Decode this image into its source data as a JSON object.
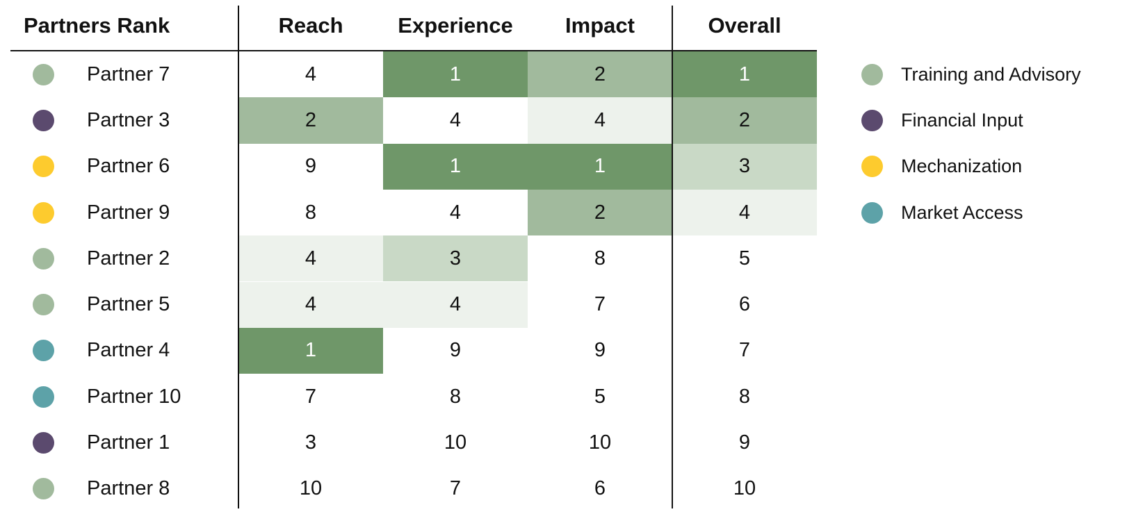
{
  "table": {
    "columns": [
      "Partners Rank",
      "Reach",
      "Experience",
      "Impact",
      "Overall"
    ],
    "rows": [
      {
        "name": "Partner 7",
        "color": "#a1ba9d",
        "values": [
          4,
          1,
          2,
          1
        ],
        "fills": [
          "#ffffff",
          "#6f9769",
          "#a1ba9d",
          "#6f9769"
        ]
      },
      {
        "name": "Partner 3",
        "color": "#5b4a6e",
        "values": [
          2,
          4,
          4,
          2
        ],
        "fills": [
          "#a1ba9d",
          "#ffffff",
          "#edf2ec",
          "#a1ba9d"
        ]
      },
      {
        "name": "Partner 6",
        "color": "#fdcb2e",
        "values": [
          9,
          1,
          1,
          3
        ],
        "fills": [
          "#ffffff",
          "#6f9769",
          "#6f9769",
          "#c9d9c6"
        ]
      },
      {
        "name": "Partner 9",
        "color": "#fdcb2e",
        "values": [
          8,
          4,
          2,
          4
        ],
        "fills": [
          "#ffffff",
          "#ffffff",
          "#a1ba9d",
          "#edf2ec"
        ]
      },
      {
        "name": "Partner 2",
        "color": "#a1ba9d",
        "values": [
          4,
          3,
          8,
          5
        ],
        "fills": [
          "#edf2ec",
          "#c9d9c6",
          "#ffffff",
          "#ffffff"
        ]
      },
      {
        "name": "Partner 5",
        "color": "#a1ba9d",
        "values": [
          4,
          4,
          7,
          6
        ],
        "fills": [
          "#edf2ec",
          "#edf2ec",
          "#ffffff",
          "#ffffff"
        ]
      },
      {
        "name": "Partner 4",
        "color": "#5da2a8",
        "values": [
          1,
          9,
          9,
          7
        ],
        "fills": [
          "#6f9769",
          "#ffffff",
          "#ffffff",
          "#ffffff"
        ]
      },
      {
        "name": "Partner 10",
        "color": "#5da2a8",
        "values": [
          7,
          8,
          5,
          8
        ],
        "fills": [
          "#ffffff",
          "#ffffff",
          "#ffffff",
          "#ffffff"
        ]
      },
      {
        "name": "Partner 1",
        "color": "#5b4a6e",
        "values": [
          3,
          10,
          10,
          9
        ],
        "fills": [
          "#ffffff",
          "#ffffff",
          "#ffffff",
          "#ffffff"
        ]
      },
      {
        "name": "Partner 8",
        "color": "#a1ba9d",
        "values": [
          10,
          7,
          6,
          10
        ],
        "fills": [
          "#ffffff",
          "#ffffff",
          "#ffffff",
          "#ffffff"
        ]
      }
    ]
  },
  "legend": [
    {
      "name": "Training and Advisory",
      "color": "#a1ba9d"
    },
    {
      "name": "Financial Input",
      "color": "#5b4a6e"
    },
    {
      "name": "Mechanization",
      "color": "#fdcb2e"
    },
    {
      "name": "Market Access",
      "color": "#5da2a8"
    }
  ]
}
